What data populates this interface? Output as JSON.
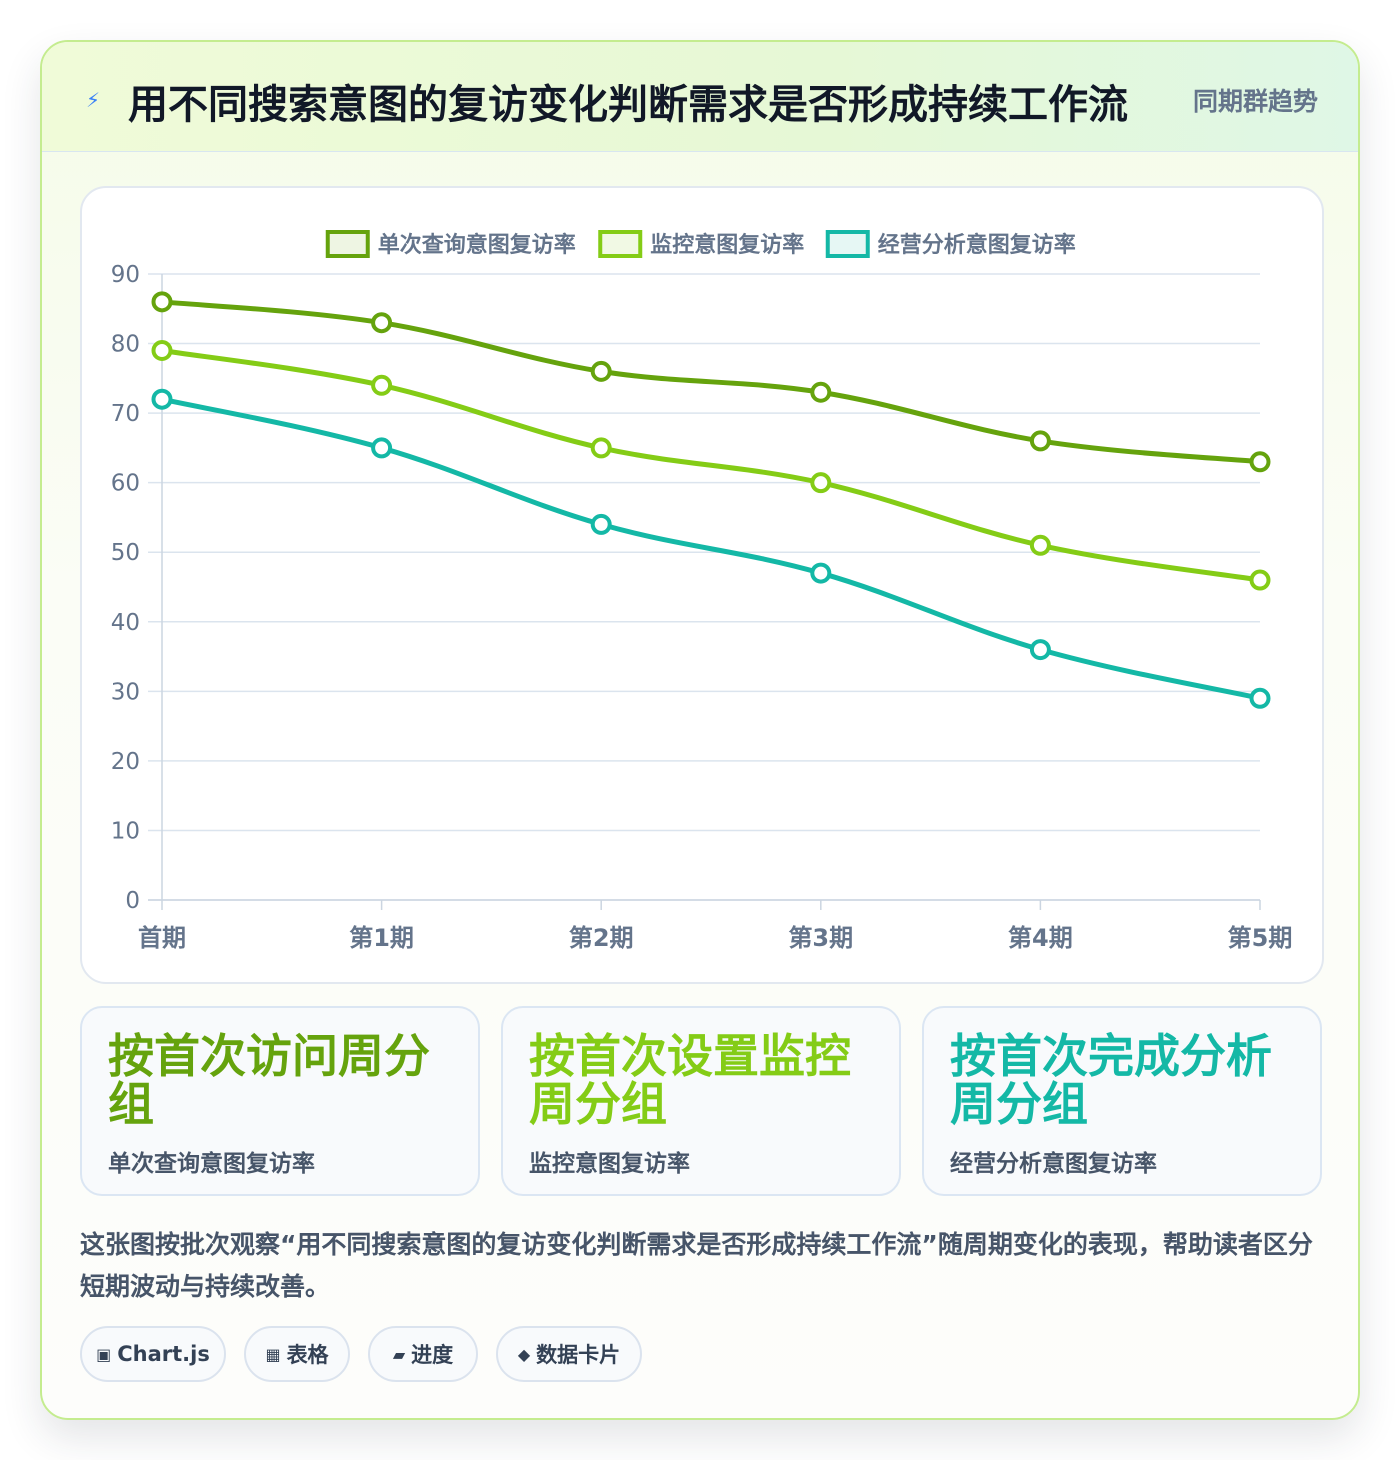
{
  "header": {
    "icon": "lightning-icon",
    "title": "用不同搜索意图的复访变化判断需求是否形成持续工作流",
    "tag": "同期群趋势"
  },
  "colors": {
    "series1": "#65a30d",
    "series2": "#84cc16",
    "series3": "#14b8a6",
    "grid": "#dbe4ee",
    "tick": "#64748b"
  },
  "chart_data": {
    "type": "line",
    "categories": [
      "首期",
      "第1期",
      "第2期",
      "第3期",
      "第4期",
      "第5期"
    ],
    "ylim": [
      0,
      90
    ],
    "yticks": [
      0,
      10,
      20,
      30,
      40,
      50,
      60,
      70,
      80,
      90
    ],
    "legend_position": "top",
    "grid": true,
    "series": [
      {
        "name": "单次查询意图复访率",
        "values": [
          86,
          83,
          76,
          73,
          66,
          63
        ]
      },
      {
        "name": "监控意图复访率",
        "values": [
          79,
          74,
          65,
          60,
          51,
          46
        ]
      },
      {
        "name": "经营分析意图复访率",
        "values": [
          72,
          65,
          54,
          47,
          36,
          29
        ]
      }
    ]
  },
  "cards": [
    {
      "big": "按首次访问周分组",
      "small": "单次查询意图复访率"
    },
    {
      "big": "按首次设置监控周分组",
      "small": "监控意图复访率"
    },
    {
      "big": "按首次完成分析周分组",
      "small": "经营分析意图复访率"
    }
  ],
  "description": "这张图按批次观察“用不同搜索意图的复访变化判断需求是否形成持续工作流”随周期变化的表现，帮助读者区分短期波动与持续改善。",
  "chips": [
    {
      "icon": "chart-icon",
      "glyph": "▣",
      "label": "Chart.js"
    },
    {
      "icon": "table-icon",
      "glyph": "▦",
      "label": "表格"
    },
    {
      "icon": "progress-icon",
      "glyph": "▰",
      "label": "进度"
    },
    {
      "icon": "card-icon",
      "glyph": "◆",
      "label": "数据卡片"
    }
  ]
}
